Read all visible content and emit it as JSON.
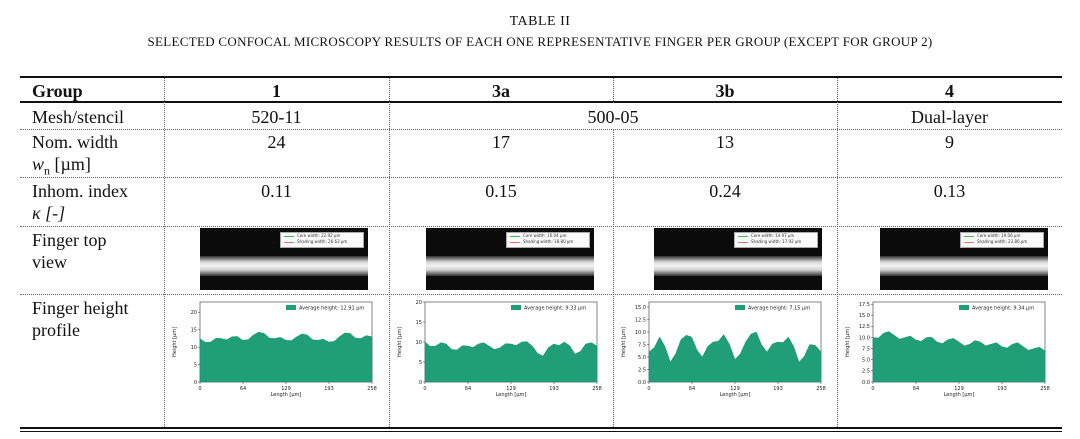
{
  "caption": {
    "label": "TABLE II",
    "title": "SELECTED CONFOCAL MICROSCOPY RESULTS OF EACH ONE REPRESENTATIVE FINGER PER GROUP (EXCEPT FOR GROUP 2)"
  },
  "table": {
    "header": [
      "Group",
      "1",
      "3a",
      "3b",
      "4"
    ],
    "mesh_label": "Mesh/stencil",
    "mesh_values": [
      "520-11",
      "500-05",
      "Dual-layer"
    ],
    "nom_width_label_1": "Nom. width",
    "nom_width_label_2": "w",
    "nom_width_label_sub": "n",
    "nom_width_label_unit": "[µm]",
    "nom_width_values": [
      "24",
      "17",
      "13",
      "9"
    ],
    "inhom_label_1": "Inhom. index",
    "inhom_label_2": "κ [-]",
    "inhom_values": [
      "0.11",
      "0.15",
      "0.24",
      "0.13"
    ],
    "top_view_label_1": "Finger top",
    "top_view_label_2": "view",
    "height_label_1": "Finger height",
    "height_label_2": "profile"
  },
  "top_views": [
    {
      "core": "Core width: 22.92 µm",
      "shading": "Shading width: 26.63 µm"
    },
    {
      "core": "Core width: 16.04 µm",
      "shading": "Shading width: 18.80 µm"
    },
    {
      "core": "Core width: 14.97 µm",
      "shading": "Shading width: 17.92 µm"
    },
    {
      "core": "Core width: 19.06 µm",
      "shading": "Shading width: 23.86 µm"
    }
  ],
  "chart_data": [
    {
      "type": "area",
      "legend": "Average height: 12.91 µm",
      "xlabel": "Length [µm]",
      "ylabel": "Height [µm]",
      "xlim": [
        0,
        258
      ],
      "ylim": [
        0,
        23
      ],
      "xticks": [
        "0",
        "64",
        "129",
        "193",
        "258"
      ],
      "yticks": [
        "0",
        "5",
        "10",
        "15",
        "20"
      ],
      "x": [
        0,
        16,
        32,
        48,
        64,
        80,
        96,
        112,
        129,
        145,
        161,
        177,
        193,
        209,
        225,
        241,
        258
      ],
      "y": [
        12.5,
        11.5,
        12.5,
        13,
        12,
        13.5,
        14,
        12.5,
        12,
        13,
        13.5,
        12,
        11.5,
        13,
        14,
        12.5,
        13
      ]
    },
    {
      "type": "area",
      "legend": "Average height: 9.33 µm",
      "xlabel": "Length [µm]",
      "ylabel": "Height [µm]",
      "xlim": [
        0,
        258
      ],
      "ylim": [
        0,
        20
      ],
      "xticks": [
        "0",
        "64",
        "129",
        "193",
        "258"
      ],
      "yticks": [
        "0",
        "5",
        "10",
        "15",
        "20"
      ],
      "x": [
        0,
        16,
        32,
        48,
        64,
        80,
        96,
        112,
        129,
        145,
        161,
        177,
        193,
        209,
        225,
        241,
        258
      ],
      "y": [
        10,
        9,
        9.5,
        8,
        9,
        9.5,
        9,
        8.5,
        9.5,
        10,
        9,
        6.5,
        9.5,
        10,
        7,
        9.5,
        9
      ]
    },
    {
      "type": "area",
      "legend": "Average height: 7.15 µm",
      "xlabel": "Length [µm]",
      "ylabel": "Height [µm]",
      "xlim": [
        0,
        258
      ],
      "ylim": [
        0,
        16
      ],
      "xticks": [
        "0",
        "64",
        "129",
        "193",
        "258"
      ],
      "yticks": [
        "0.0",
        "2.5",
        "5.0",
        "7.5",
        "10.0",
        "12.5",
        "15.0"
      ],
      "x": [
        0,
        16,
        32,
        48,
        64,
        80,
        96,
        112,
        129,
        145,
        161,
        177,
        193,
        209,
        225,
        241,
        258
      ],
      "y": [
        6,
        9,
        4,
        8.5,
        9,
        5,
        8,
        9.5,
        4.5,
        8,
        10,
        6,
        8,
        9,
        4,
        7.5,
        6
      ]
    },
    {
      "type": "area",
      "legend": "Average height: 9.34 µm",
      "xlabel": "Length [µm]",
      "ylabel": "Height [µm]",
      "xlim": [
        0,
        258
      ],
      "ylim": [
        0,
        18
      ],
      "xticks": [
        "0",
        "64",
        "129",
        "193",
        "258"
      ],
      "yticks": [
        "0.0",
        "2.5",
        "5.0",
        "7.5",
        "10.0",
        "12.5",
        "15.0",
        "17.5"
      ],
      "x": [
        0,
        16,
        32,
        48,
        64,
        80,
        96,
        112,
        129,
        145,
        161,
        177,
        193,
        209,
        225,
        241,
        258
      ],
      "y": [
        10,
        11,
        10.5,
        10,
        9.5,
        10,
        9,
        9.5,
        9,
        8.5,
        9,
        8.5,
        8,
        8.5,
        8,
        7.5,
        7
      ]
    }
  ]
}
